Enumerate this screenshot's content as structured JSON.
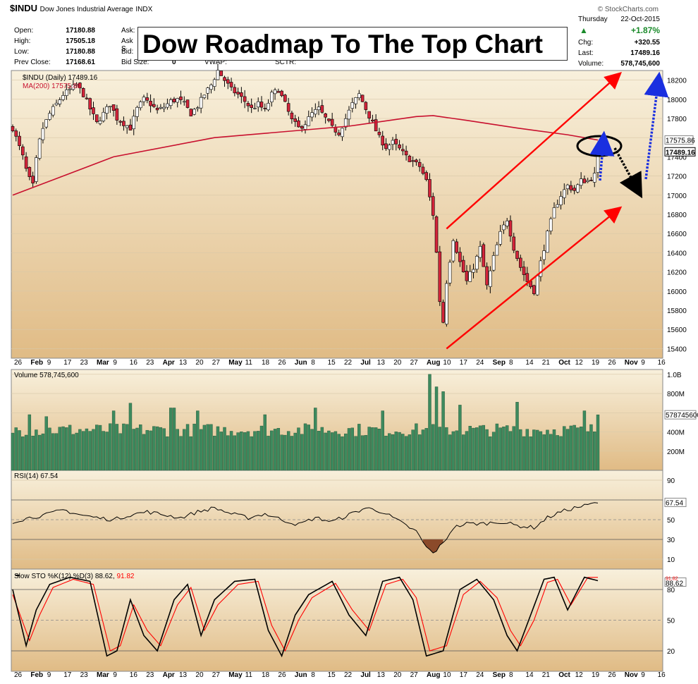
{
  "header": {
    "symbol": "$INDU",
    "name": "Dow Jones Industrial Average",
    "exchange": "INDX",
    "date_day": "Thursday",
    "date": "22-Oct-2015",
    "credit": "© StockCharts.com",
    "quote": {
      "open_label": "Open:",
      "open": "17180.88",
      "high_label": "High:",
      "high": "17505.18",
      "low_label": "Low:",
      "low": "17180.88",
      "prev_label": "Prev Close:",
      "prev": "17168.61",
      "ask_label": "Ask:",
      "ask_s_label": "Ask S",
      "bid_label": "Bid:",
      "bidsize_label": "Bid Size:",
      "bidsize": "0",
      "vwap_label": "VWAP:",
      "sctr_label": "SCTR:",
      "change_pct": "+1.87%",
      "chg_label": "Chg:",
      "chg": "+320.55",
      "last_label": "Last:",
      "last": "17489.16",
      "volume_label": "Volume:",
      "volume": "578,745,600"
    }
  },
  "overlay_title": "Dow Roadmap To The Top Chart",
  "colors": {
    "panel_bg_top": "#f8f0dc",
    "panel_bg_bottom": "#e0bb85",
    "up_candle": "#ffffff",
    "down_candle": "#d4243a",
    "ma_line": "#c8102e",
    "volume_bar": "#3d8a5e",
    "trend_arrow": "#ff0000",
    "blue_arrow": "#1a2fe0",
    "rsi_oversold": "#8b4a2a",
    "sto_k": "#000000",
    "sto_d": "#ff0000"
  },
  "chart_data": [
    {
      "type": "candlestick",
      "legend": "$INDU (Daily) 17489.16",
      "ma_legend": "MA(200) 17575.86",
      "ma_value": 17575.86,
      "last_value": 17489.16,
      "ylim": [
        15300,
        18300
      ],
      "yticks": [
        15400,
        15600,
        15800,
        16000,
        16200,
        16400,
        16600,
        16800,
        17000,
        17200,
        17400,
        17600,
        17800,
        18000,
        18200
      ],
      "x_tick_labels": [
        "26",
        "Feb",
        "9",
        "17",
        "23",
        "Mar",
        "9",
        "16",
        "23",
        "Apr",
        "13",
        "20",
        "27",
        "May",
        "11",
        "18",
        "26",
        "Jun",
        "8",
        "15",
        "22",
        "Jul",
        "13",
        "20",
        "27",
        "Aug",
        "10",
        "17",
        "24",
        "Sep",
        "8",
        "14",
        "21",
        "Oct",
        "12",
        "19",
        "26",
        "Nov",
        "9",
        "16"
      ],
      "month_labels": [
        "Feb",
        "Mar",
        "Apr",
        "May",
        "Jun",
        "Jul",
        "Aug",
        "Sep",
        "Oct",
        "Nov"
      ],
      "close_path": [
        [
          0,
          17700
        ],
        [
          3,
          17550
        ],
        [
          6,
          17400
        ],
        [
          9,
          17200
        ],
        [
          12,
          17100
        ],
        [
          15,
          17500
        ],
        [
          18,
          17700
        ],
        [
          22,
          17850
        ],
        [
          26,
          17950
        ],
        [
          30,
          18050
        ],
        [
          34,
          18100
        ],
        [
          38,
          18150
        ],
        [
          42,
          18050
        ],
        [
          46,
          17900
        ],
        [
          50,
          17750
        ],
        [
          54,
          17850
        ],
        [
          58,
          17950
        ],
        [
          62,
          17800
        ],
        [
          66,
          17750
        ],
        [
          70,
          17700
        ],
        [
          74,
          17900
        ],
        [
          78,
          18000
        ],
        [
          82,
          17950
        ],
        [
          86,
          17880
        ],
        [
          90,
          17920
        ],
        [
          94,
          17980
        ],
        [
          98,
          18000
        ],
        [
          102,
          17950
        ],
        [
          106,
          17850
        ],
        [
          110,
          17930
        ],
        [
          114,
          18050
        ],
        [
          118,
          18150
        ],
        [
          122,
          18300
        ],
        [
          126,
          18200
        ],
        [
          130,
          18100
        ],
        [
          134,
          18050
        ],
        [
          138,
          17980
        ],
        [
          142,
          17900
        ],
        [
          146,
          17950
        ],
        [
          150,
          17880
        ],
        [
          154,
          18050
        ],
        [
          158,
          18100
        ],
        [
          162,
          17950
        ],
        [
          166,
          17780
        ],
        [
          170,
          17700
        ],
        [
          174,
          17750
        ],
        [
          178,
          17850
        ],
        [
          182,
          17900
        ],
        [
          186,
          17800
        ],
        [
          190,
          17700
        ],
        [
          194,
          17650
        ],
        [
          198,
          17800
        ],
        [
          202,
          17950
        ],
        [
          206,
          18050
        ],
        [
          210,
          17900
        ],
        [
          214,
          17750
        ],
        [
          218,
          17600
        ],
        [
          222,
          17500
        ],
        [
          226,
          17550
        ],
        [
          230,
          17480
        ],
        [
          234,
          17400
        ],
        [
          238,
          17350
        ],
        [
          242,
          17300
        ],
        [
          246,
          17150
        ],
        [
          250,
          16800
        ],
        [
          252,
          16400
        ],
        [
          254,
          15900
        ],
        [
          256,
          15680
        ],
        [
          258,
          16100
        ],
        [
          262,
          16550
        ],
        [
          266,
          16300
        ],
        [
          270,
          16100
        ],
        [
          274,
          16250
        ],
        [
          278,
          16450
        ],
        [
          282,
          16050
        ],
        [
          286,
          16350
        ],
        [
          290,
          16600
        ],
        [
          294,
          16750
        ],
        [
          298,
          16450
        ],
        [
          302,
          16250
        ],
        [
          306,
          16100
        ],
        [
          310,
          16000
        ],
        [
          314,
          16300
        ],
        [
          318,
          16600
        ],
        [
          322,
          16850
        ],
        [
          326,
          17000
        ],
        [
          330,
          17100
        ],
        [
          334,
          17050
        ],
        [
          338,
          17150
        ],
        [
          342,
          17150
        ],
        [
          346,
          17210
        ],
        [
          348,
          17489
        ]
      ],
      "channel_lines": [
        {
          "from": [
            258,
            15400
          ],
          "to": [
            360,
            16850
          ]
        },
        {
          "from": [
            258,
            16650
          ],
          "to": [
            360,
            18250
          ]
        }
      ],
      "ma200_path": [
        [
          0,
          17000
        ],
        [
          60,
          17400
        ],
        [
          120,
          17600
        ],
        [
          200,
          17720
        ],
        [
          240,
          17820
        ],
        [
          250,
          17830
        ],
        [
          270,
          17780
        ],
        [
          300,
          17700
        ],
        [
          330,
          17630
        ],
        [
          348,
          17575
        ]
      ]
    },
    {
      "type": "bar",
      "legend": "Volume 578,745,600",
      "last_value_label": "578745600",
      "ylim": [
        0,
        1050000000
      ],
      "ytick_labels": [
        "200M",
        "400M",
        "600M",
        "800M",
        "1.0B"
      ],
      "ytick_values": [
        200000000,
        400000000,
        600000000,
        800000000,
        1000000000
      ],
      "baseline_volume": 420000000,
      "spikes": [
        [
          10,
          580000000
        ],
        [
          20,
          560000000
        ],
        [
          60,
          620000000
        ],
        [
          70,
          700000000
        ],
        [
          95,
          650000000
        ],
        [
          110,
          620000000
        ],
        [
          150,
          580000000
        ],
        [
          180,
          650000000
        ],
        [
          220,
          620000000
        ],
        [
          248,
          1000000000
        ],
        [
          252,
          870000000
        ],
        [
          256,
          820000000
        ],
        [
          266,
          680000000
        ],
        [
          300,
          710000000
        ],
        [
          340,
          620000000
        ],
        [
          348,
          578745600
        ]
      ]
    },
    {
      "type": "line",
      "legend": "RSI(14) 67.54",
      "last_value": 67.54,
      "ylim": [
        0,
        100
      ],
      "ytick_values": [
        10,
        30,
        50,
        70,
        90
      ],
      "ytick_labels": [
        "10",
        "30",
        "50",
        "70",
        "90"
      ],
      "path": [
        [
          0,
          48
        ],
        [
          10,
          52
        ],
        [
          20,
          55
        ],
        [
          30,
          60
        ],
        [
          40,
          55
        ],
        [
          50,
          52
        ],
        [
          60,
          50
        ],
        [
          70,
          55
        ],
        [
          80,
          58
        ],
        [
          90,
          55
        ],
        [
          100,
          52
        ],
        [
          110,
          58
        ],
        [
          120,
          62
        ],
        [
          130,
          56
        ],
        [
          140,
          52
        ],
        [
          150,
          56
        ],
        [
          160,
          50
        ],
        [
          170,
          45
        ],
        [
          180,
          52
        ],
        [
          190,
          48
        ],
        [
          200,
          55
        ],
        [
          210,
          62
        ],
        [
          220,
          58
        ],
        [
          230,
          48
        ],
        [
          240,
          38
        ],
        [
          246,
          22
        ],
        [
          250,
          16
        ],
        [
          256,
          26
        ],
        [
          262,
          42
        ],
        [
          270,
          46
        ],
        [
          280,
          46
        ],
        [
          290,
          48
        ],
        [
          300,
          44
        ],
        [
          310,
          42
        ],
        [
          318,
          52
        ],
        [
          326,
          58
        ],
        [
          334,
          62
        ],
        [
          340,
          64
        ],
        [
          348,
          67.54
        ]
      ]
    },
    {
      "type": "line",
      "legend": "Slow STO %K(12) %D(3) 88.62, 91.82",
      "k_value": 88.62,
      "d_value": 91.82,
      "ylim": [
        0,
        100
      ],
      "ytick_values": [
        20,
        50,
        80
      ],
      "ytick_labels": [
        "20",
        "50",
        "80"
      ],
      "k_path": [
        [
          0,
          80
        ],
        [
          8,
          25
        ],
        [
          14,
          60
        ],
        [
          22,
          85
        ],
        [
          34,
          92
        ],
        [
          46,
          88
        ],
        [
          56,
          15
        ],
        [
          62,
          20
        ],
        [
          70,
          70
        ],
        [
          78,
          35
        ],
        [
          86,
          20
        ],
        [
          96,
          70
        ],
        [
          104,
          85
        ],
        [
          112,
          35
        ],
        [
          120,
          70
        ],
        [
          132,
          88
        ],
        [
          144,
          90
        ],
        [
          152,
          40
        ],
        [
          160,
          15
        ],
        [
          168,
          55
        ],
        [
          176,
          75
        ],
        [
          190,
          88
        ],
        [
          200,
          55
        ],
        [
          210,
          35
        ],
        [
          220,
          88
        ],
        [
          230,
          92
        ],
        [
          238,
          70
        ],
        [
          246,
          15
        ],
        [
          256,
          20
        ],
        [
          266,
          80
        ],
        [
          276,
          90
        ],
        [
          286,
          70
        ],
        [
          294,
          35
        ],
        [
          300,
          20
        ],
        [
          308,
          55
        ],
        [
          316,
          90
        ],
        [
          322,
          92
        ],
        [
          330,
          60
        ],
        [
          340,
          92
        ],
        [
          348,
          88.62
        ]
      ],
      "d_path": [
        [
          0,
          75
        ],
        [
          10,
          30
        ],
        [
          16,
          55
        ],
        [
          24,
          82
        ],
        [
          36,
          90
        ],
        [
          48,
          85
        ],
        [
          58,
          20
        ],
        [
          64,
          25
        ],
        [
          72,
          65
        ],
        [
          80,
          40
        ],
        [
          88,
          25
        ],
        [
          98,
          65
        ],
        [
          106,
          82
        ],
        [
          114,
          40
        ],
        [
          122,
          65
        ],
        [
          134,
          85
        ],
        [
          146,
          88
        ],
        [
          154,
          45
        ],
        [
          162,
          20
        ],
        [
          170,
          50
        ],
        [
          178,
          72
        ],
        [
          192,
          86
        ],
        [
          202,
          60
        ],
        [
          212,
          40
        ],
        [
          222,
          85
        ],
        [
          232,
          90
        ],
        [
          240,
          72
        ],
        [
          248,
          20
        ],
        [
          258,
          25
        ],
        [
          268,
          75
        ],
        [
          278,
          88
        ],
        [
          288,
          72
        ],
        [
          296,
          40
        ],
        [
          302,
          25
        ],
        [
          310,
          50
        ],
        [
          318,
          87
        ],
        [
          324,
          90
        ],
        [
          332,
          65
        ],
        [
          342,
          91.82
        ],
        [
          348,
          91.82
        ]
      ]
    }
  ]
}
